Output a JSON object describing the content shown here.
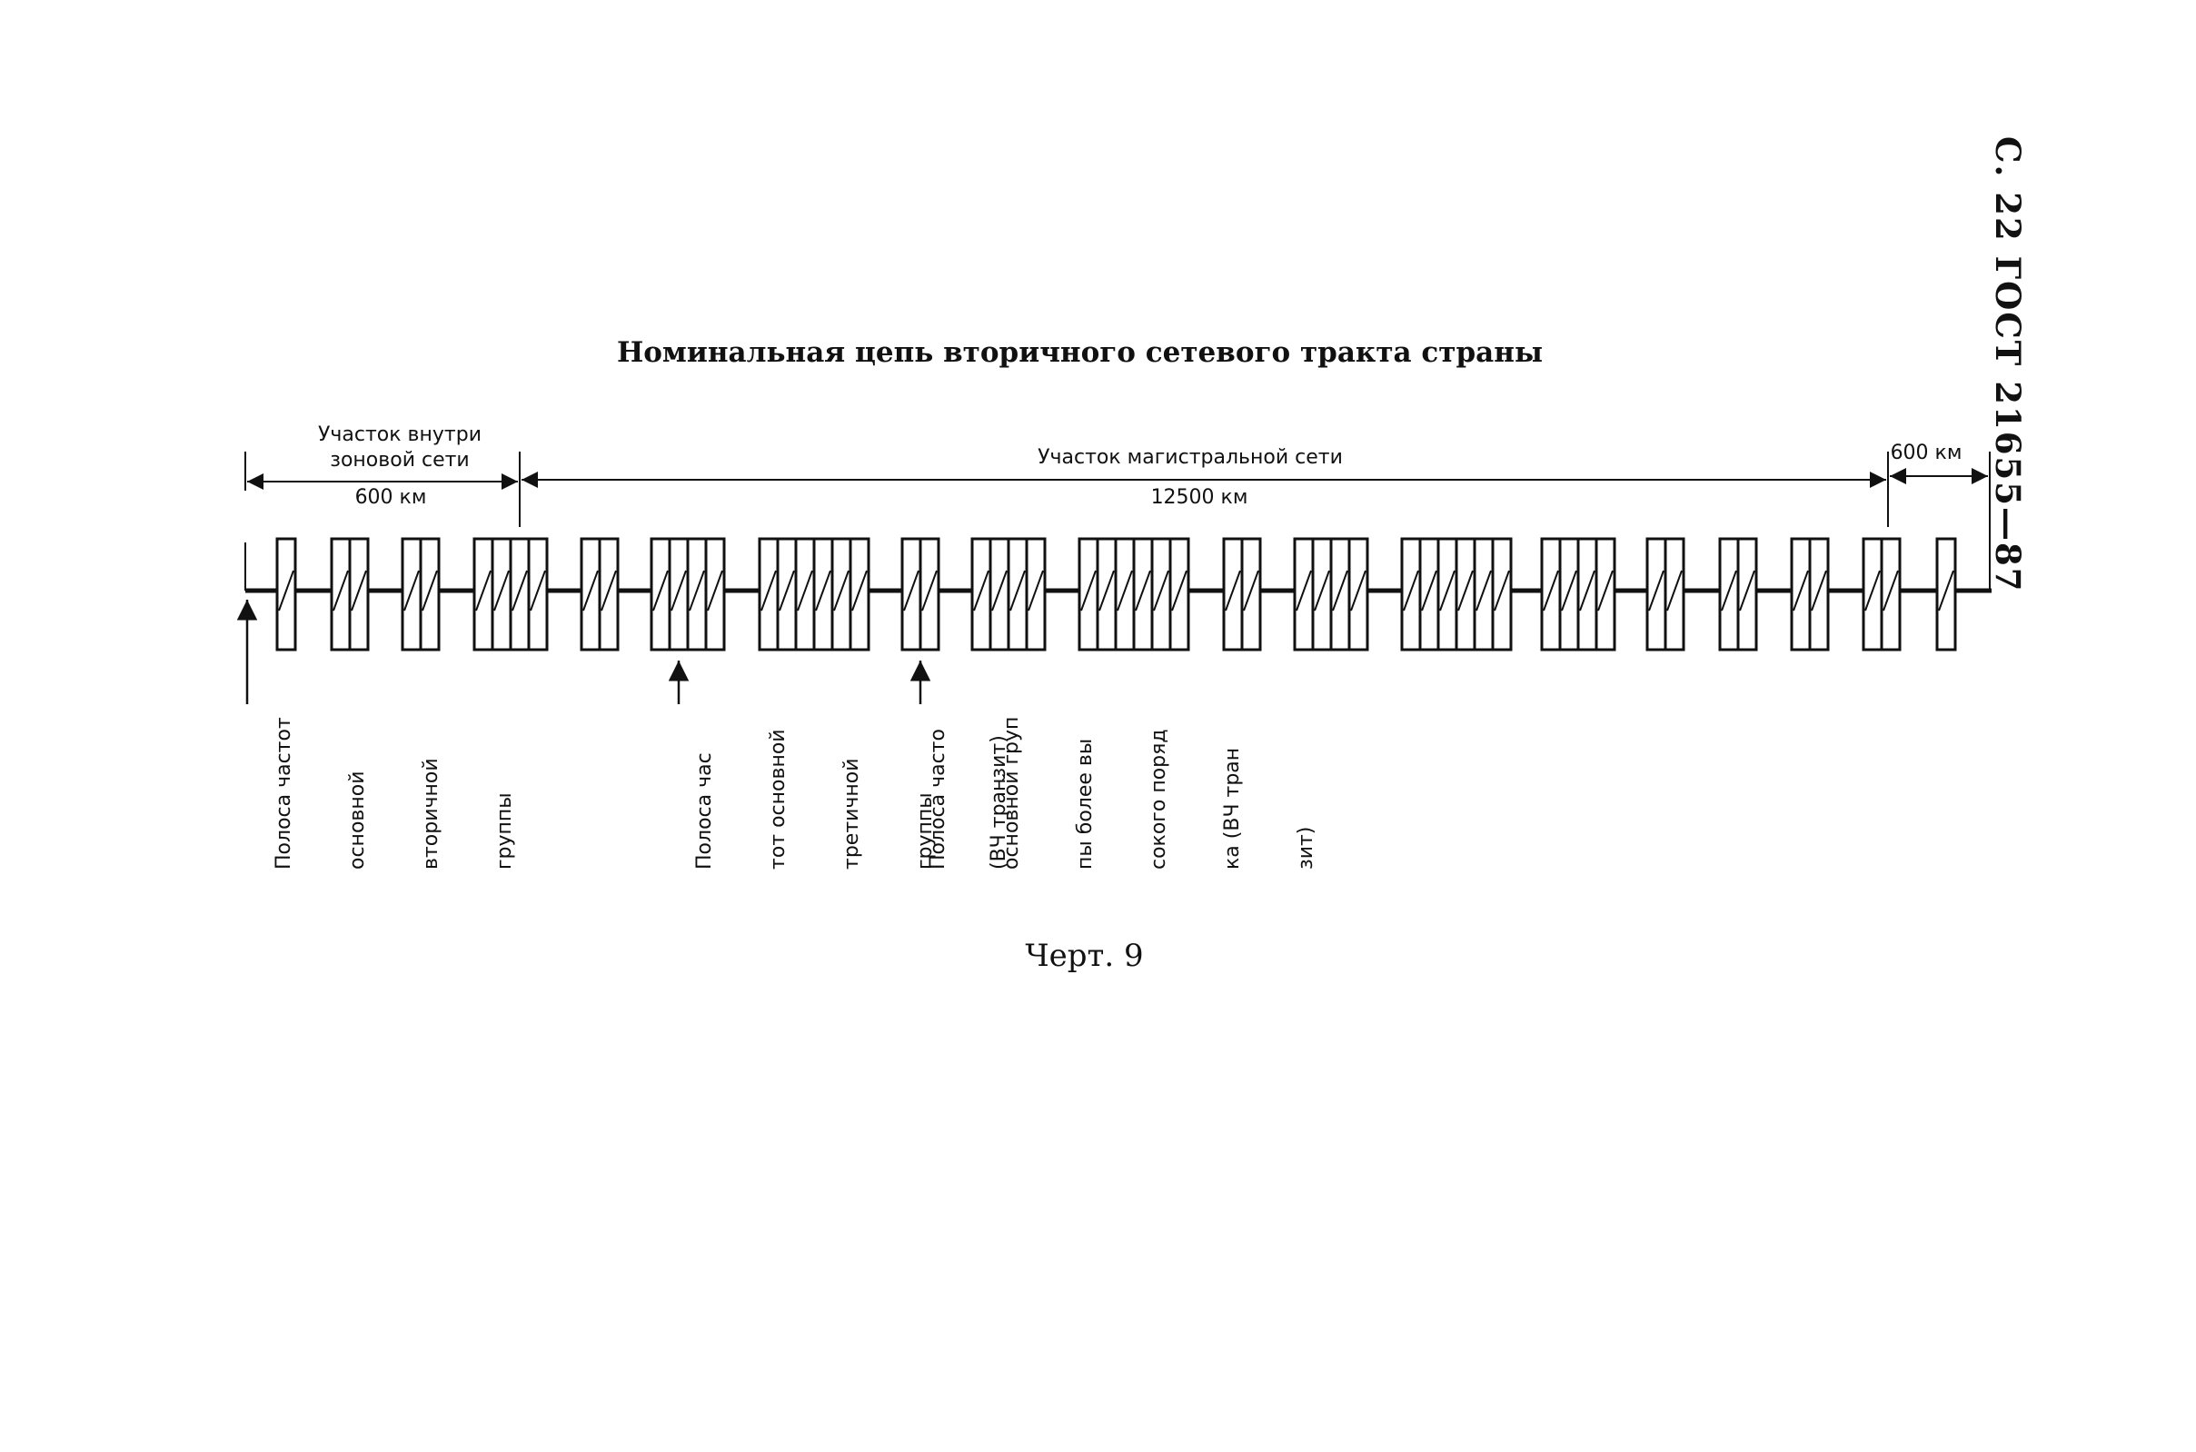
{
  "header": "С. 22 ГОСТ 21655—87",
  "title": "Номинальная цепь вторичного сетевого тракта страны",
  "segments": {
    "zone": {
      "label_line1": "Участок внутри",
      "label_line2": "зоновой сети",
      "length": "600 км"
    },
    "trunk": {
      "label": "Участок магистральной сети",
      "length": "12500 км"
    },
    "end": {
      "length": "600 км"
    }
  },
  "notes": [
    {
      "lines": [
        "Полоса частот",
        "основной",
        "вторичной",
        "группы"
      ]
    },
    {
      "lines": [
        "Полоса час",
        "тот основной",
        "третичной",
        "группы",
        "(ВЧ транзит)"
      ]
    },
    {
      "lines": [
        "Полоса часто",
        "основной груп",
        "пы более вы",
        "сокого поряд",
        "ка (ВЧ тран",
        "зит)"
      ]
    }
  ],
  "chain": {
    "block_counts": [
      1,
      2,
      2,
      4,
      2,
      4,
      6,
      2,
      4,
      6,
      2,
      4,
      6,
      4,
      2,
      2,
      2,
      2,
      1
    ]
  },
  "caption": "Черт. 9"
}
